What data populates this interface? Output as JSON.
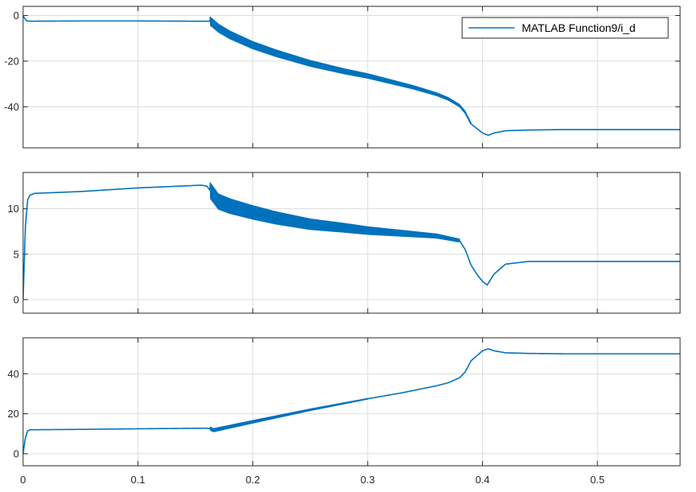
{
  "colors": {
    "series": "#0072bd",
    "grid": "#dcdcdc",
    "axis": "#262626",
    "background": "#ffffff"
  },
  "legend": {
    "label": "MATLAB Function9/i_d",
    "placement": "top-right",
    "panel": 0
  },
  "chart_data": [
    {
      "type": "line",
      "title": "",
      "xlabel": "",
      "ylabel": "",
      "xlim": [
        0,
        0.572
      ],
      "ylim": [
        -58,
        4
      ],
      "xticks": [
        0,
        0.1,
        0.2,
        0.3,
        0.4,
        0.5
      ],
      "xtick_labels": [
        "0",
        "0.1",
        "0.2",
        "0.3",
        "0.4",
        "0.5"
      ],
      "yticks": [
        0,
        -20,
        -40
      ],
      "ytick_labels": [
        "0",
        "-20",
        "-40"
      ],
      "xtick_labels_visible": false,
      "grid": true,
      "series": [
        {
          "name": "MATLAB Function9/i_d",
          "x": [
            0,
            0.001,
            0.003,
            0.006,
            0.05,
            0.1,
            0.15,
            0.163,
            0.17,
            0.18,
            0.2,
            0.22,
            0.25,
            0.28,
            0.3,
            0.32,
            0.34,
            0.36,
            0.37,
            0.38,
            0.385,
            0.39,
            0.395,
            0.4,
            0.405,
            0.41,
            0.42,
            0.44,
            0.47,
            0.5,
            0.54,
            0.572
          ],
          "y": [
            0,
            -1,
            -2.3,
            -2.5,
            -2.4,
            -2.4,
            -2.5,
            -2.5,
            -5.5,
            -8.5,
            -13,
            -16.5,
            -21,
            -24.5,
            -26.5,
            -29,
            -31.5,
            -34.5,
            -36.5,
            -39.5,
            -42.5,
            -47.5,
            -49.5,
            -51.5,
            -52.5,
            -51.5,
            -50.5,
            -50.2,
            -50,
            -50,
            -50,
            -50
          ],
          "ripple": {
            "from": 0.163,
            "to": 0.39,
            "amplitude_start": 3.5,
            "amplitude_end": 0.8
          }
        }
      ]
    },
    {
      "type": "line",
      "title": "",
      "xlabel": "",
      "ylabel": "",
      "xlim": [
        0,
        0.572
      ],
      "ylim": [
        -1.5,
        14
      ],
      "xticks": [
        0,
        0.1,
        0.2,
        0.3,
        0.4,
        0.5
      ],
      "xtick_labels": [
        "0",
        "0.1",
        "0.2",
        "0.3",
        "0.4",
        "0.5"
      ],
      "yticks": [
        0,
        5,
        10
      ],
      "ytick_labels": [
        "0",
        "5",
        "10"
      ],
      "xtick_labels_visible": false,
      "grid": true,
      "series": [
        {
          "x": [
            0,
            0.002,
            0.004,
            0.006,
            0.01,
            0.05,
            0.1,
            0.155,
            0.16,
            0.163,
            0.17,
            0.18,
            0.2,
            0.22,
            0.25,
            0.28,
            0.3,
            0.33,
            0.36,
            0.38,
            0.385,
            0.39,
            0.395,
            0.4,
            0.404,
            0.41,
            0.42,
            0.44,
            0.47,
            0.5,
            0.54,
            0.572
          ],
          "y": [
            0,
            8,
            11,
            11.5,
            11.7,
            11.9,
            12.3,
            12.6,
            12.5,
            12,
            10.8,
            10.3,
            9.6,
            9,
            8.3,
            7.9,
            7.6,
            7.3,
            7,
            6.5,
            5.5,
            3.8,
            2.8,
            2,
            1.6,
            2.8,
            3.9,
            4.2,
            4.2,
            4.2,
            4.2,
            4.2
          ],
          "ripple": {
            "from": 0.163,
            "to": 0.38,
            "amplitude_start": 1.7,
            "amplitude_end": 0.3
          }
        }
      ]
    },
    {
      "type": "line",
      "title": "",
      "xlabel": "",
      "ylabel": "",
      "xlim": [
        0,
        0.572
      ],
      "ylim": [
        -6,
        58
      ],
      "xticks": [
        0,
        0.1,
        0.2,
        0.3,
        0.4,
        0.5
      ],
      "xtick_labels": [
        "0",
        "0.1",
        "0.2",
        "0.3",
        "0.4",
        "0.5"
      ],
      "yticks": [
        0,
        20,
        40
      ],
      "ytick_labels": [
        "0",
        "20",
        "40"
      ],
      "xtick_labels_visible": true,
      "grid": true,
      "series": [
        {
          "x": [
            0,
            0.002,
            0.004,
            0.006,
            0.05,
            0.1,
            0.16,
            0.163,
            0.166,
            0.17,
            0.2,
            0.25,
            0.3,
            0.33,
            0.36,
            0.37,
            0.38,
            0.385,
            0.39,
            0.395,
            0.4,
            0.405,
            0.41,
            0.42,
            0.44,
            0.47,
            0.5,
            0.54,
            0.572
          ],
          "y": [
            0,
            8,
            11.5,
            12,
            12.2,
            12.5,
            12.8,
            12.5,
            11.8,
            12.3,
            16,
            22,
            27.5,
            30.5,
            34,
            35.5,
            38,
            41,
            46.5,
            49,
            51.5,
            52.5,
            51.5,
            50.5,
            50.2,
            50,
            50,
            50,
            50
          ],
          "ripple": {
            "from": 0.163,
            "to": 0.3,
            "amplitude_start": 1.5,
            "amplitude_end": 0.2
          }
        }
      ]
    }
  ]
}
